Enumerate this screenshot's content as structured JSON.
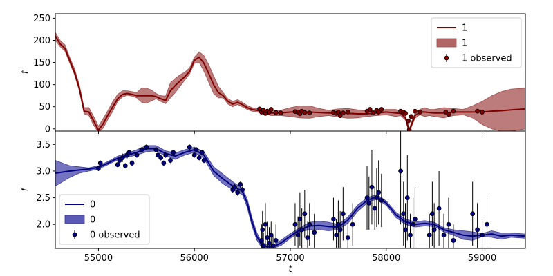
{
  "chart_data": [
    {
      "type": "line",
      "panel": "top",
      "ylabel": "f",
      "ylim": [
        -5,
        260
      ],
      "yticks": [
        "0",
        "50",
        "100",
        "150",
        "200",
        "250"
      ],
      "yticks_values": [
        0,
        50,
        100,
        150,
        200,
        250
      ],
      "xlim": [
        54550,
        59450
      ],
      "grid": false,
      "legend_position": "upper right",
      "legend": [
        "1",
        "1",
        "1 observed"
      ],
      "colors": {
        "line": "#800000",
        "band": "#b26565",
        "band_edge": "#a04b4b",
        "marker": "#800000"
      },
      "series": [
        {
          "kind": "line",
          "x": [
            54550,
            54600,
            54650,
            54700,
            54750,
            54800,
            54850,
            54900,
            54950,
            55000,
            55050,
            55100,
            55150,
            55200,
            55250,
            55300,
            55350,
            55400,
            55450,
            55500,
            55550,
            55600,
            55650,
            55700,
            55750,
            55800,
            55850,
            55900,
            55950,
            56000,
            56050,
            56100,
            56150,
            56200,
            56250,
            56300,
            56350,
            56400,
            56450,
            56500,
            56550,
            56600,
            56650,
            56700,
            56800,
            56900,
            57000,
            57100,
            57200,
            57300,
            57400,
            57500,
            57600,
            57700,
            57800,
            57900,
            58000,
            58100,
            58150,
            58200,
            58220,
            58240,
            58260,
            58300,
            58350,
            58400,
            58450,
            58500,
            58600,
            58700,
            58800,
            58900,
            59000,
            59100,
            59200,
            59300,
            59450
          ],
          "y": [
            210,
            192,
            182,
            155,
            128,
            92,
            40,
            38,
            18,
            -3,
            12,
            32,
            50,
            68,
            78,
            80,
            78,
            75,
            75,
            75,
            75,
            73,
            68,
            64,
            86,
            98,
            108,
            118,
            130,
            155,
            162,
            148,
            125,
            100,
            82,
            75,
            62,
            56,
            60,
            55,
            48,
            44,
            42,
            40,
            36,
            36,
            38,
            38,
            38,
            37,
            36,
            36,
            35,
            34,
            34,
            36,
            38,
            36,
            35,
            25,
            10,
            -5,
            8,
            30,
            38,
            38,
            37,
            36,
            36,
            38,
            38,
            38,
            38,
            40,
            41,
            43,
            45
          ]
        },
        {
          "kind": "band",
          "x": [
            54550,
            54600,
            54650,
            54700,
            54750,
            54800,
            54850,
            54900,
            54950,
            55000,
            55050,
            55100,
            55150,
            55200,
            55250,
            55300,
            55350,
            55400,
            55450,
            55500,
            55550,
            55600,
            55650,
            55700,
            55750,
            55800,
            55850,
            55900,
            55950,
            56000,
            56050,
            56100,
            56150,
            56200,
            56250,
            56300,
            56350,
            56400,
            56450,
            56500,
            56550,
            56600,
            56650,
            56700,
            56800,
            56900,
            57000,
            57100,
            57200,
            57300,
            57400,
            57500,
            57600,
            57700,
            57800,
            57900,
            58000,
            58100,
            58150,
            58200,
            58220,
            58240,
            58260,
            58300,
            58350,
            58400,
            58450,
            58500,
            58600,
            58700,
            58800,
            58900,
            59000,
            59100,
            59200,
            59300,
            59450
          ],
          "y_low": [
            200,
            186,
            176,
            149,
            122,
            86,
            34,
            30,
            8,
            -8,
            2,
            22,
            40,
            62,
            72,
            76,
            74,
            70,
            60,
            58,
            63,
            68,
            62,
            57,
            70,
            82,
            96,
            110,
            124,
            148,
            150,
            130,
            105,
            80,
            70,
            70,
            56,
            50,
            55,
            50,
            44,
            40,
            38,
            36,
            30,
            30,
            28,
            25,
            24,
            28,
            30,
            27,
            24,
            25,
            28,
            30,
            32,
            28,
            30,
            20,
            5,
            -10,
            3,
            24,
            32,
            28,
            30,
            28,
            25,
            30,
            32,
            25,
            10,
            0,
            -5,
            -5,
            0
          ],
          "y_high": [
            218,
            200,
            190,
            162,
            136,
            100,
            48,
            48,
            28,
            6,
            24,
            42,
            62,
            78,
            86,
            86,
            84,
            82,
            92,
            92,
            88,
            80,
            75,
            74,
            104,
            114,
            122,
            128,
            138,
            162,
            174,
            165,
            145,
            120,
            96,
            82,
            68,
            62,
            66,
            60,
            53,
            48,
            46,
            44,
            42,
            42,
            48,
            52,
            52,
            46,
            42,
            45,
            46,
            43,
            40,
            42,
            44,
            44,
            41,
            30,
            16,
            0,
            14,
            36,
            44,
            48,
            44,
            44,
            48,
            46,
            44,
            52,
            62,
            75,
            84,
            90,
            92
          ]
        },
        {
          "kind": "observed",
          "x": [
            56680,
            56700,
            56720,
            56740,
            56760,
            56780,
            56800,
            56850,
            56900,
            57050,
            57080,
            57100,
            57120,
            57150,
            57200,
            57450,
            57480,
            57500,
            57520,
            57550,
            57600,
            57800,
            57830,
            57860,
            57900,
            57920,
            57950,
            58150,
            58180,
            58200,
            58230,
            58240,
            58260,
            58300,
            58350,
            58620,
            58650,
            58700,
            58950,
            59000
          ],
          "y": [
            45,
            38,
            42,
            35,
            40,
            38,
            44,
            37,
            36,
            39,
            38,
            34,
            40,
            37,
            36,
            37,
            35,
            38,
            30,
            36,
            38,
            40,
            44,
            36,
            42,
            38,
            44,
            40,
            38,
            35,
            18,
            -2,
            28,
            40,
            38,
            38,
            33,
            40,
            40,
            38
          ]
        }
      ]
    },
    {
      "type": "line",
      "panel": "bottom",
      "ylabel": "f",
      "xlabel": "t",
      "ylim": [
        1.55,
        3.75
      ],
      "yticks": [
        "2.0",
        "2.5",
        "3.0",
        "3.5"
      ],
      "yticks_values": [
        2.0,
        2.5,
        3.0,
        3.5
      ],
      "xlim": [
        54550,
        59450
      ],
      "xticks": [
        "55000",
        "56000",
        "57000",
        "58000",
        "59000"
      ],
      "xticks_values": [
        55000,
        56000,
        57000,
        58000,
        59000
      ],
      "grid": false,
      "legend_position": "lower left",
      "legend": [
        "0",
        "0",
        "0 observed"
      ],
      "colors": {
        "line": "#000080",
        "band": "#5a5ab4",
        "band_edge": "#3c3c9c",
        "marker": "#000080"
      },
      "series": [
        {
          "kind": "line",
          "x": [
            54550,
            54700,
            54800,
            54900,
            55000,
            55100,
            55200,
            55300,
            55400,
            55500,
            55600,
            55700,
            55800,
            55900,
            56000,
            56100,
            56200,
            56300,
            56400,
            56500,
            56550,
            56600,
            56650,
            56700,
            56750,
            56800,
            56850,
            56900,
            57000,
            57100,
            57200,
            57300,
            57400,
            57500,
            57600,
            57700,
            57800,
            57900,
            58000,
            58100,
            58200,
            58300,
            58400,
            58500,
            58600,
            58700,
            58800,
            58900,
            59000,
            59100,
            59200,
            59300,
            59450
          ],
          "y": [
            2.96,
            3.0,
            3.02,
            3.04,
            3.07,
            3.15,
            3.24,
            3.3,
            3.35,
            3.42,
            3.42,
            3.33,
            3.28,
            3.35,
            3.4,
            3.3,
            3.0,
            2.85,
            2.72,
            2.62,
            2.4,
            2.05,
            1.78,
            1.62,
            1.58,
            1.58,
            1.6,
            1.65,
            1.78,
            1.9,
            1.97,
            1.98,
            1.96,
            1.95,
            2.08,
            2.3,
            2.45,
            2.52,
            2.4,
            2.18,
            2.05,
            2.0,
            2.02,
            2.0,
            1.9,
            1.85,
            1.8,
            1.78,
            1.8,
            1.82,
            1.78,
            1.8,
            1.78
          ]
        },
        {
          "kind": "band",
          "x": [
            54550,
            54700,
            54800,
            54900,
            55000,
            55100,
            55200,
            55300,
            55400,
            55500,
            55600,
            55700,
            55800,
            55900,
            56000,
            56100,
            56200,
            56300,
            56400,
            56500,
            56550,
            56600,
            56650,
            56700,
            56750,
            56800,
            56850,
            56900,
            57000,
            57100,
            57200,
            57300,
            57400,
            57500,
            57600,
            57700,
            57800,
            57900,
            58000,
            58100,
            58200,
            58300,
            58400,
            58500,
            58600,
            58700,
            58800,
            58900,
            59000,
            59100,
            59200,
            59300,
            59450
          ],
          "y_low": [
            2.72,
            2.88,
            2.96,
            3.0,
            3.04,
            3.12,
            3.21,
            3.26,
            3.3,
            3.36,
            3.38,
            3.28,
            3.22,
            3.3,
            3.35,
            3.24,
            2.92,
            2.76,
            2.65,
            2.56,
            2.32,
            1.97,
            1.71,
            1.57,
            1.54,
            1.55,
            1.57,
            1.6,
            1.74,
            1.86,
            1.9,
            1.9,
            1.88,
            1.9,
            2.02,
            2.24,
            2.4,
            2.48,
            2.36,
            2.13,
            2.0,
            1.95,
            1.97,
            1.96,
            1.86,
            1.8,
            1.72,
            1.7,
            1.77,
            1.76,
            1.72,
            1.76,
            1.74
          ],
          "y_high": [
            3.2,
            3.1,
            3.08,
            3.06,
            3.1,
            3.18,
            3.28,
            3.34,
            3.4,
            3.48,
            3.48,
            3.38,
            3.34,
            3.4,
            3.45,
            3.36,
            3.08,
            2.94,
            2.8,
            2.68,
            2.48,
            2.13,
            1.85,
            1.67,
            1.62,
            1.62,
            1.64,
            1.7,
            1.83,
            1.94,
            2.04,
            2.06,
            2.04,
            2.0,
            2.14,
            2.36,
            2.5,
            2.56,
            2.44,
            2.23,
            2.1,
            2.05,
            2.07,
            2.04,
            1.94,
            1.9,
            1.88,
            1.86,
            1.83,
            1.88,
            1.84,
            1.84,
            1.82
          ]
        },
        {
          "kind": "observed",
          "x": [
            55000,
            55020,
            55200,
            55220,
            55250,
            55280,
            55300,
            55320,
            55350,
            55400,
            55450,
            55500,
            55600,
            55620,
            55650,
            55680,
            55700,
            55750,
            55780,
            55950,
            56000,
            56020,
            56050,
            56080,
            56100,
            56400,
            56420,
            56450,
            56480,
            56500,
            56700,
            56710,
            56720,
            56740,
            56760,
            56780,
            56800,
            56820,
            56850,
            57050,
            57080,
            57100,
            57120,
            57150,
            57180,
            57200,
            57250,
            57450,
            57480,
            57500,
            57520,
            57550,
            57600,
            57650,
            57800,
            57820,
            57850,
            57880,
            57900,
            57920,
            57950,
            58150,
            58180,
            58200,
            58220,
            58250,
            58280,
            58300,
            58450,
            58480,
            58500,
            58550,
            58600,
            58650,
            58700,
            58900,
            58950,
            59000,
            59050
          ],
          "y": [
            3.05,
            3.15,
            3.12,
            3.2,
            3.25,
            3.1,
            3.3,
            3.35,
            3.15,
            3.3,
            3.4,
            3.45,
            3.4,
            3.3,
            3.25,
            3.15,
            3.3,
            3.2,
            3.35,
            3.45,
            3.3,
            3.4,
            3.25,
            3.35,
            3.2,
            2.65,
            2.7,
            2.6,
            2.75,
            2.65,
            1.7,
            1.9,
            1.6,
            2.0,
            1.75,
            1.65,
            1.8,
            1.6,
            1.7,
            2.0,
            1.8,
            2.1,
            1.9,
            2.2,
            1.75,
            2.0,
            1.85,
            2.1,
            1.8,
            2.0,
            1.9,
            2.2,
            1.75,
            2.0,
            2.5,
            2.4,
            2.7,
            2.3,
            2.5,
            2.6,
            2.45,
            3.0,
            2.2,
            1.9,
            2.5,
            1.8,
            2.0,
            2.1,
            1.8,
            2.2,
            1.9,
            2.3,
            1.8,
            2.0,
            1.7,
            2.2,
            1.9,
            1.8,
            2.0
          ],
          "err": [
            0.05,
            0.05,
            0.05,
            0.05,
            0.08,
            0.05,
            0.06,
            0.05,
            0.05,
            0.05,
            0.05,
            0.05,
            0.05,
            0.05,
            0.05,
            0.05,
            0.05,
            0.05,
            0.05,
            0.05,
            0.05,
            0.05,
            0.05,
            0.05,
            0.05,
            0.06,
            0.06,
            0.06,
            0.06,
            0.06,
            0.3,
            0.35,
            0.25,
            0.4,
            0.3,
            0.3,
            0.25,
            0.2,
            0.3,
            0.4,
            0.35,
            0.5,
            0.4,
            0.45,
            0.3,
            0.4,
            0.35,
            0.4,
            0.3,
            0.45,
            0.35,
            0.5,
            0.3,
            0.4,
            0.6,
            0.5,
            0.7,
            0.4,
            0.55,
            0.6,
            0.5,
            1.0,
            0.6,
            0.5,
            0.8,
            0.4,
            0.5,
            0.6,
            0.4,
            0.6,
            0.5,
            0.7,
            0.4,
            0.5,
            0.3,
            0.6,
            0.5,
            0.3,
            0.5
          ]
        }
      ]
    }
  ]
}
